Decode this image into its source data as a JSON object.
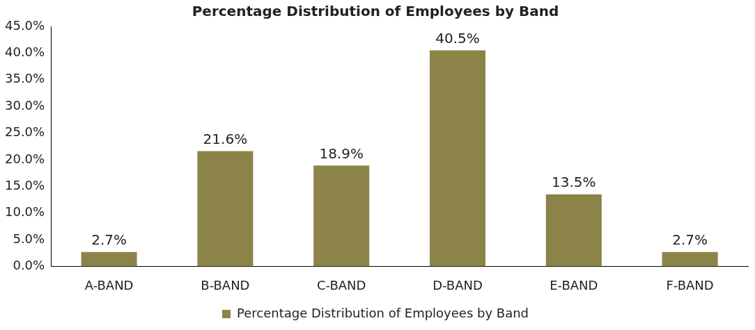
{
  "chart_data": {
    "type": "bar",
    "title": "Percentage Distribution of Employees by Band",
    "categories": [
      "A-BAND",
      "B-BAND",
      "C-BAND",
      "D-BAND",
      "E-BAND",
      "F-BAND"
    ],
    "series": [
      {
        "name": "Percentage Distribution of Employees by Band",
        "color": "#8c8348",
        "values": [
          2.7,
          21.6,
          18.9,
          40.5,
          13.5,
          2.7
        ],
        "value_labels": [
          "2.7%",
          "21.6%",
          "18.9%",
          "40.5%",
          "13.5%",
          "2.7%"
        ]
      }
    ],
    "ylim": [
      0,
      45
    ],
    "yticks": [
      {
        "value": 0,
        "label": "0.0%"
      },
      {
        "value": 5,
        "label": "5.0%"
      },
      {
        "value": 10,
        "label": "10.0%"
      },
      {
        "value": 15,
        "label": "15.0%"
      },
      {
        "value": 20,
        "label": "20.0%"
      },
      {
        "value": 25,
        "label": "25.0%"
      },
      {
        "value": 30,
        "label": "30.0%"
      },
      {
        "value": 35,
        "label": "35.0%"
      },
      {
        "value": 40,
        "label": "40.0%"
      },
      {
        "value": 45,
        "label": "45.0%"
      }
    ],
    "grid": false,
    "legend": "bottom"
  }
}
